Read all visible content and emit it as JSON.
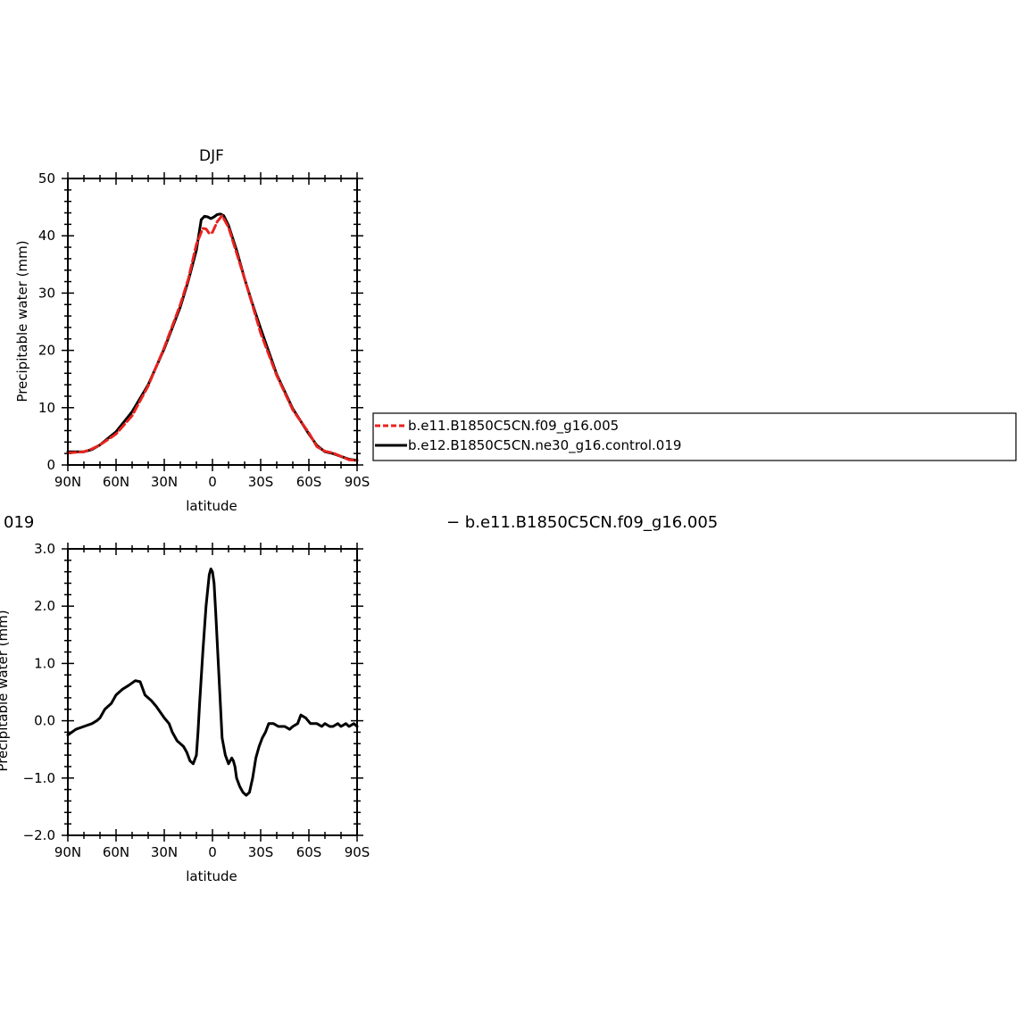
{
  "chart_data": [
    {
      "type": "line",
      "title": "DJF",
      "xlabel": "latitude",
      "ylabel": "Precipitable water (mm)",
      "xlim": [
        -90,
        90
      ],
      "ylim": [
        0,
        50
      ],
      "x_ticks": [
        "90N",
        "60N",
        "30N",
        "0",
        "30S",
        "60S",
        "90S"
      ],
      "y_ticks": [
        "0",
        "10",
        "20",
        "30",
        "40",
        "50"
      ],
      "series": [
        {
          "name": "b.e11.B1850C5CN.f09_g16.005",
          "color": "#e8231e",
          "dash": true,
          "x": [
            -90,
            -80,
            -75,
            -70,
            -60,
            -50,
            -40,
            -30,
            -20,
            -15,
            -10,
            -6,
            -4,
            -2,
            0,
            3,
            6,
            10,
            15,
            20,
            25,
            30,
            40,
            50,
            60,
            65,
            70,
            75,
            80,
            85,
            90
          ],
          "y": [
            2.1,
            2.3,
            2.8,
            3.5,
            5.4,
            8.6,
            13.8,
            20.5,
            28,
            32.5,
            38.5,
            41.3,
            41.2,
            40.4,
            40.6,
            42.5,
            43.5,
            41.5,
            37,
            32.5,
            27.8,
            23,
            15.6,
            9.6,
            5.6,
            3.2,
            2.4,
            2.1,
            1.5,
            0.9,
            0.8
          ]
        },
        {
          "name": "b.e12.B1850C5CN.ne30_g16.control.019",
          "color": "#000000",
          "dash": false,
          "x": [
            -90,
            -80,
            -75,
            -70,
            -60,
            -50,
            -40,
            -30,
            -20,
            -15,
            -10,
            -7,
            -5,
            -3,
            -1,
            1,
            3,
            5,
            7,
            10,
            15,
            20,
            25,
            30,
            40,
            50,
            60,
            65,
            70,
            75,
            80,
            85,
            90
          ],
          "y": [
            2.3,
            2.3,
            2.7,
            3.5,
            5.8,
            9.3,
            14,
            20.3,
            27.6,
            32.2,
            37.5,
            42.8,
            43.4,
            43.3,
            43,
            43.3,
            43.7,
            43.8,
            43.5,
            41.8,
            37.5,
            32.5,
            28,
            23.8,
            15.8,
            9.8,
            5.4,
            3.4,
            2.3,
            2,
            1.5,
            1,
            0.8
          ]
        }
      ]
    },
    {
      "type": "line",
      "title": "",
      "xlabel": "latitude",
      "ylabel": "Precipitable water (mm)",
      "xlim": [
        -90,
        90
      ],
      "ylim": [
        -2.0,
        3.0
      ],
      "x_ticks": [
        "90N",
        "60N",
        "30N",
        "0",
        "30S",
        "60S",
        "90S"
      ],
      "y_ticks": [
        "−2.0",
        "−1.0",
        "0.0",
        "1.0",
        "2.0",
        "3.0"
      ],
      "series": [
        {
          "color": "#000000",
          "x": [
            -90,
            -85,
            -80,
            -75,
            -72,
            -70,
            -67,
            -63,
            -60,
            -56,
            -52,
            -48,
            -45,
            -42,
            -38,
            -35,
            -30,
            -27,
            -25,
            -22,
            -20,
            -18,
            -16,
            -14,
            -12,
            -10,
            -9,
            -8,
            -6,
            -4,
            -2,
            -1,
            0,
            1,
            2,
            4,
            6,
            8,
            10,
            12,
            13,
            14,
            15,
            17,
            19,
            21,
            23,
            25,
            27,
            29,
            31,
            33,
            35,
            38,
            41,
            43,
            45,
            48,
            50,
            53,
            55,
            58,
            61,
            63,
            65,
            68,
            70,
            73,
            75,
            78,
            80,
            83,
            85,
            88,
            90
          ],
          "y": [
            -0.25,
            -0.15,
            -0.1,
            -0.05,
            0.0,
            0.05,
            0.2,
            0.3,
            0.45,
            0.55,
            0.62,
            0.7,
            0.68,
            0.45,
            0.35,
            0.25,
            0.05,
            -0.05,
            -0.2,
            -0.35,
            -0.4,
            -0.45,
            -0.55,
            -0.7,
            -0.75,
            -0.6,
            -0.2,
            0.3,
            1.2,
            2.0,
            2.55,
            2.65,
            2.6,
            2.4,
            1.9,
            0.8,
            -0.3,
            -0.6,
            -0.75,
            -0.65,
            -0.7,
            -0.8,
            -1.0,
            -1.15,
            -1.25,
            -1.3,
            -1.25,
            -1.0,
            -0.65,
            -0.45,
            -0.3,
            -0.2,
            -0.05,
            -0.05,
            -0.1,
            -0.1,
            -0.1,
            -0.15,
            -0.1,
            -0.05,
            0.1,
            0.05,
            -0.05,
            -0.05,
            -0.05,
            -0.1,
            -0.05,
            -0.1,
            -0.1,
            -0.05,
            -0.1,
            -0.05,
            -0.1,
            -0.05,
            -0.1
          ]
        }
      ]
    }
  ],
  "legend": {
    "entries": [
      "b.e11.B1850C5CN.f09_g16.005",
      "b.e12.B1850C5CN.ne30_g16.control.019"
    ]
  },
  "bottom_title_left": "019",
  "bottom_title_right": "− b.e11.B1850C5CN.f09_g16.005"
}
